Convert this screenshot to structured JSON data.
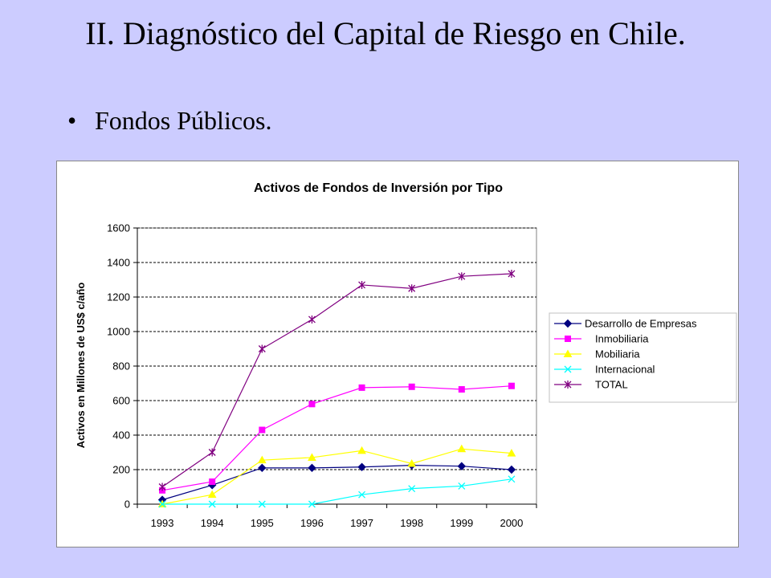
{
  "slide": {
    "title": "II. Diagnóstico del Capital de Riesgo en Chile.",
    "bullet": "Fondos Públicos.",
    "background_color": "#ccccff"
  },
  "chart_data": {
    "type": "line",
    "title": "Activos de Fondos de Inversión por Tipo",
    "xlabel": "",
    "ylabel": "Activos en Millones de US$ c/año",
    "categories": [
      "1993",
      "1994",
      "1995",
      "1996",
      "1997",
      "1998",
      "1999",
      "2000"
    ],
    "ylim": [
      0,
      1600
    ],
    "yticks": [
      0,
      200,
      400,
      600,
      800,
      1000,
      1200,
      1400,
      1600
    ],
    "grid": "horizontal dashed",
    "legend_position": "right",
    "series": [
      {
        "name": "Desarrollo de Empresas",
        "color": "#000080",
        "marker": "diamond",
        "values": [
          25,
          110,
          210,
          210,
          215,
          225,
          220,
          200
        ]
      },
      {
        "name": "Inmobiliaria",
        "color": "#ff00ff",
        "marker": "square",
        "values": [
          80,
          130,
          430,
          580,
          675,
          680,
          665,
          685
        ]
      },
      {
        "name": "Mobiliaria",
        "color": "#ffff00",
        "marker": "triangle",
        "values": [
          0,
          55,
          255,
          270,
          310,
          235,
          320,
          295
        ]
      },
      {
        "name": "Internacional",
        "color": "#00ffff",
        "marker": "x",
        "values": [
          0,
          0,
          0,
          0,
          55,
          90,
          105,
          145
        ]
      },
      {
        "name": "TOTAL",
        "color": "#800080",
        "marker": "star",
        "values": [
          100,
          300,
          900,
          1070,
          1270,
          1250,
          1320,
          1335
        ]
      }
    ]
  }
}
